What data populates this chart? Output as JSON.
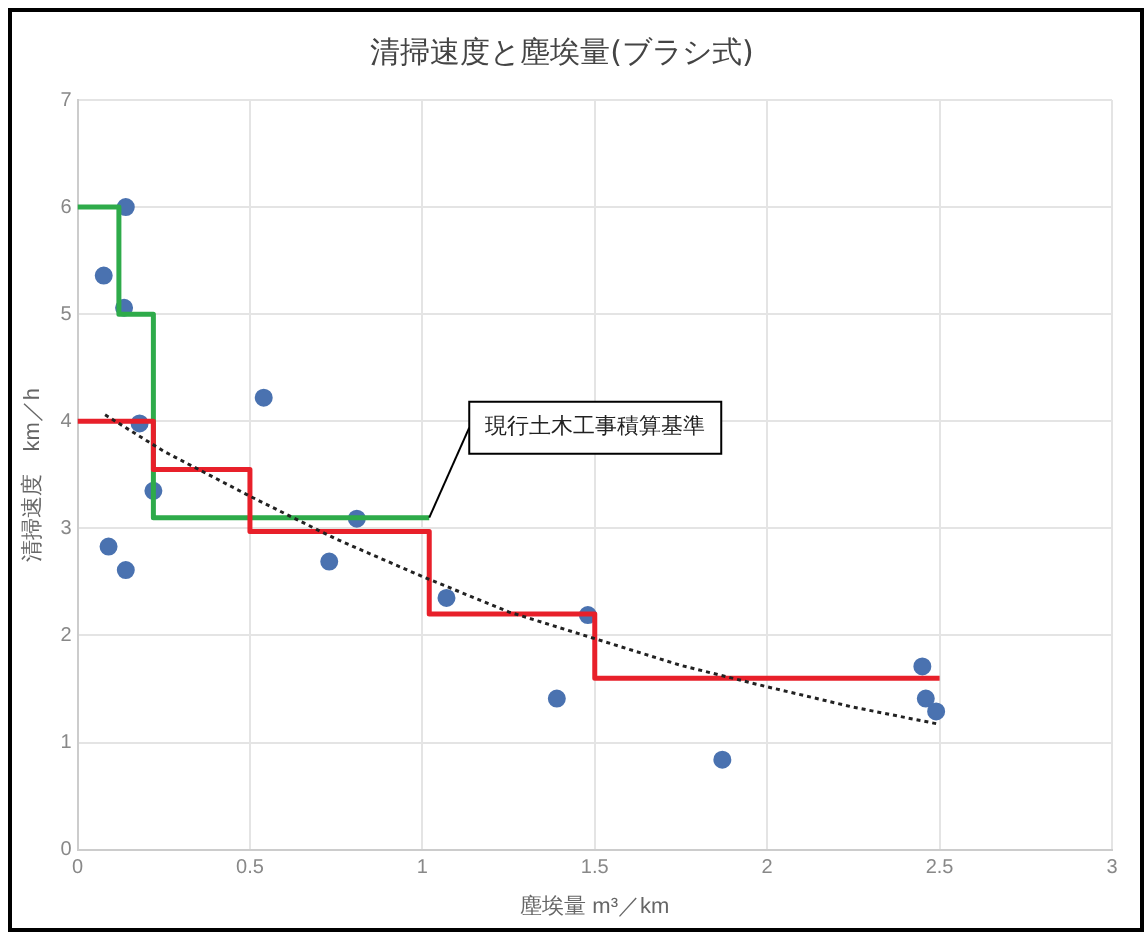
{
  "chart_data": {
    "type": "scatter",
    "title": "清掃速度と塵埃量(ブラシ式)",
    "xlabel": "塵埃量 m³／km",
    "ylabel": "清掃速度　km／h",
    "xlim": [
      0,
      3
    ],
    "xticks": [
      0,
      0.5,
      1,
      1.5,
      2,
      2.5,
      3
    ],
    "ylim": [
      0,
      7
    ],
    "yticks": [
      0,
      1,
      2,
      3,
      4,
      5,
      6,
      7
    ],
    "grid": true,
    "legend": false,
    "series": [
      {
        "color": "#4a72b0",
        "marker": "circle",
        "x": [
          0.076,
          0.14,
          0.135,
          0.18,
          0.22,
          0.09,
          0.14,
          0.54,
          0.73,
          0.81,
          1.07,
          1.39,
          1.48,
          1.87,
          2.45,
          2.46,
          2.49
        ],
        "values": [
          5.36,
          6.0,
          5.06,
          3.98,
          3.35,
          2.83,
          2.61,
          4.22,
          2.69,
          3.09,
          2.35,
          1.41,
          2.19,
          0.84,
          1.71,
          1.41,
          1.29
        ]
      },
      {
        "type": "step",
        "color": "#2eab4a",
        "marker": "none",
        "x": [
          0,
          0.12,
          0.22,
          1.02
        ],
        "values": [
          6,
          5,
          3.1,
          3.1
        ]
      },
      {
        "type": "step",
        "color": "#e8202a",
        "marker": "none",
        "x": [
          0,
          0.22,
          0.5,
          1.02,
          1.5,
          2.5
        ],
        "values": [
          4,
          3.55,
          2.97,
          2.2,
          1.6,
          1.6
        ]
      },
      {
        "type": "line",
        "color": "#222222",
        "marker": "none",
        "line_style": "dotted",
        "x": [
          0.08,
          0.25,
          0.5,
          0.75,
          1.0,
          1.25,
          1.5,
          1.75,
          2.0,
          2.25,
          2.5
        ],
        "values": [
          4.06,
          3.72,
          3.3,
          2.9,
          2.55,
          2.22,
          1.97,
          1.72,
          1.52,
          1.33,
          1.17
        ]
      }
    ],
    "annotations": [
      {
        "text": "現行土木工事積算基準",
        "x": 1.02,
        "y": 3.1
      }
    ]
  }
}
